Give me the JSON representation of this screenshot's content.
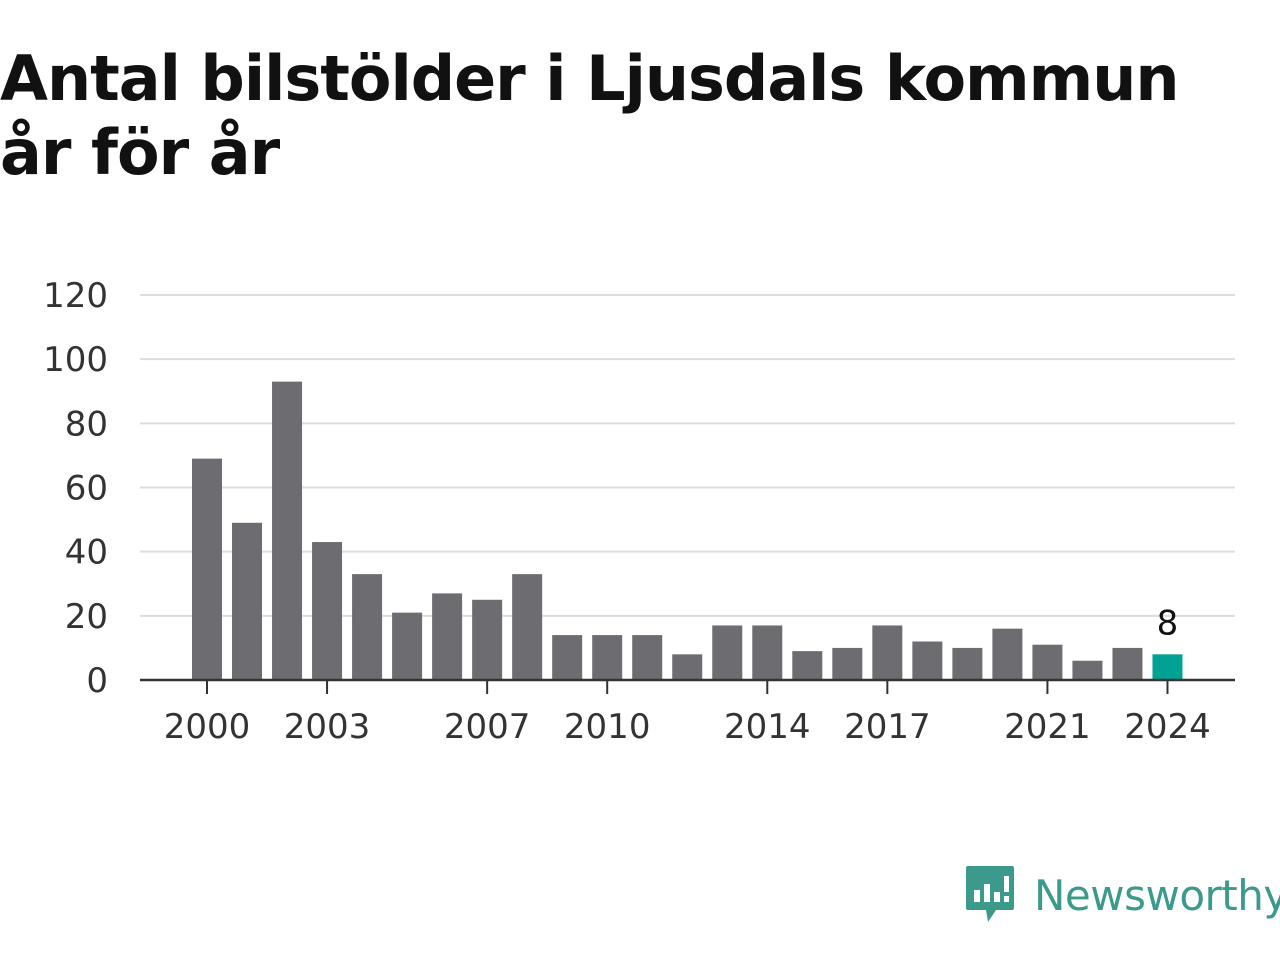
{
  "chart_data": {
    "type": "bar",
    "title": "Antal bilstölder i Ljusdals kommun år för år",
    "categories": [
      "2000",
      "2001",
      "2002",
      "2003",
      "2004",
      "2005",
      "2006",
      "2007",
      "2008",
      "2009",
      "2010",
      "2011",
      "2012",
      "2013",
      "2014",
      "2015",
      "2016",
      "2017",
      "2018",
      "2019",
      "2020",
      "2021",
      "2022",
      "2023",
      "2024"
    ],
    "values": [
      69,
      49,
      93,
      43,
      33,
      21,
      27,
      25,
      33,
      14,
      14,
      14,
      8,
      17,
      17,
      9,
      10,
      17,
      12,
      10,
      16,
      11,
      6,
      10,
      8
    ],
    "x_tick_labels": [
      "2000",
      "2003",
      "2007",
      "2010",
      "2014",
      "2017",
      "2021",
      "2024"
    ],
    "y_ticks": [
      0,
      20,
      40,
      60,
      80,
      100,
      120
    ],
    "ylim": [
      0,
      120
    ],
    "grid": true,
    "highlight": {
      "category": "2024",
      "label": "8"
    },
    "colors": {
      "bar": "#6d6c71",
      "highlight": "#00a294",
      "grid": "#dddddd",
      "axis": "#333333"
    },
    "xlabel": "",
    "ylabel": ""
  },
  "brand": {
    "name": "Newsworthy",
    "icon": "newsworthy-logo-icon",
    "color": "#3c9a8c"
  }
}
